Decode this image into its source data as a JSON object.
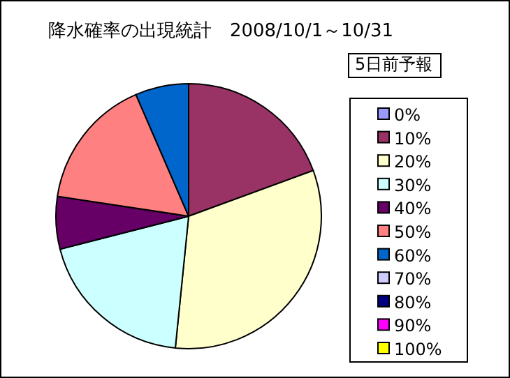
{
  "chart_data": {
    "type": "pie",
    "title": "降水確率の出現統計　2008/10/1～10/31",
    "legend_title": "5日前予報",
    "legend": "right",
    "categories": [
      "0%",
      "10%",
      "20%",
      "30%",
      "40%",
      "50%",
      "60%",
      "70%",
      "80%",
      "90%",
      "100%"
    ],
    "values": [
      0,
      19.4,
      32.2,
      19.4,
      6.4,
      16.1,
      6.5,
      0,
      0,
      0,
      0
    ],
    "colors": [
      "#9999ff",
      "#993366",
      "#ffffcc",
      "#ccffff",
      "#660066",
      "#ff8080",
      "#0066cc",
      "#ccccff",
      "#000080",
      "#ff00ff",
      "#ffff00"
    ]
  }
}
